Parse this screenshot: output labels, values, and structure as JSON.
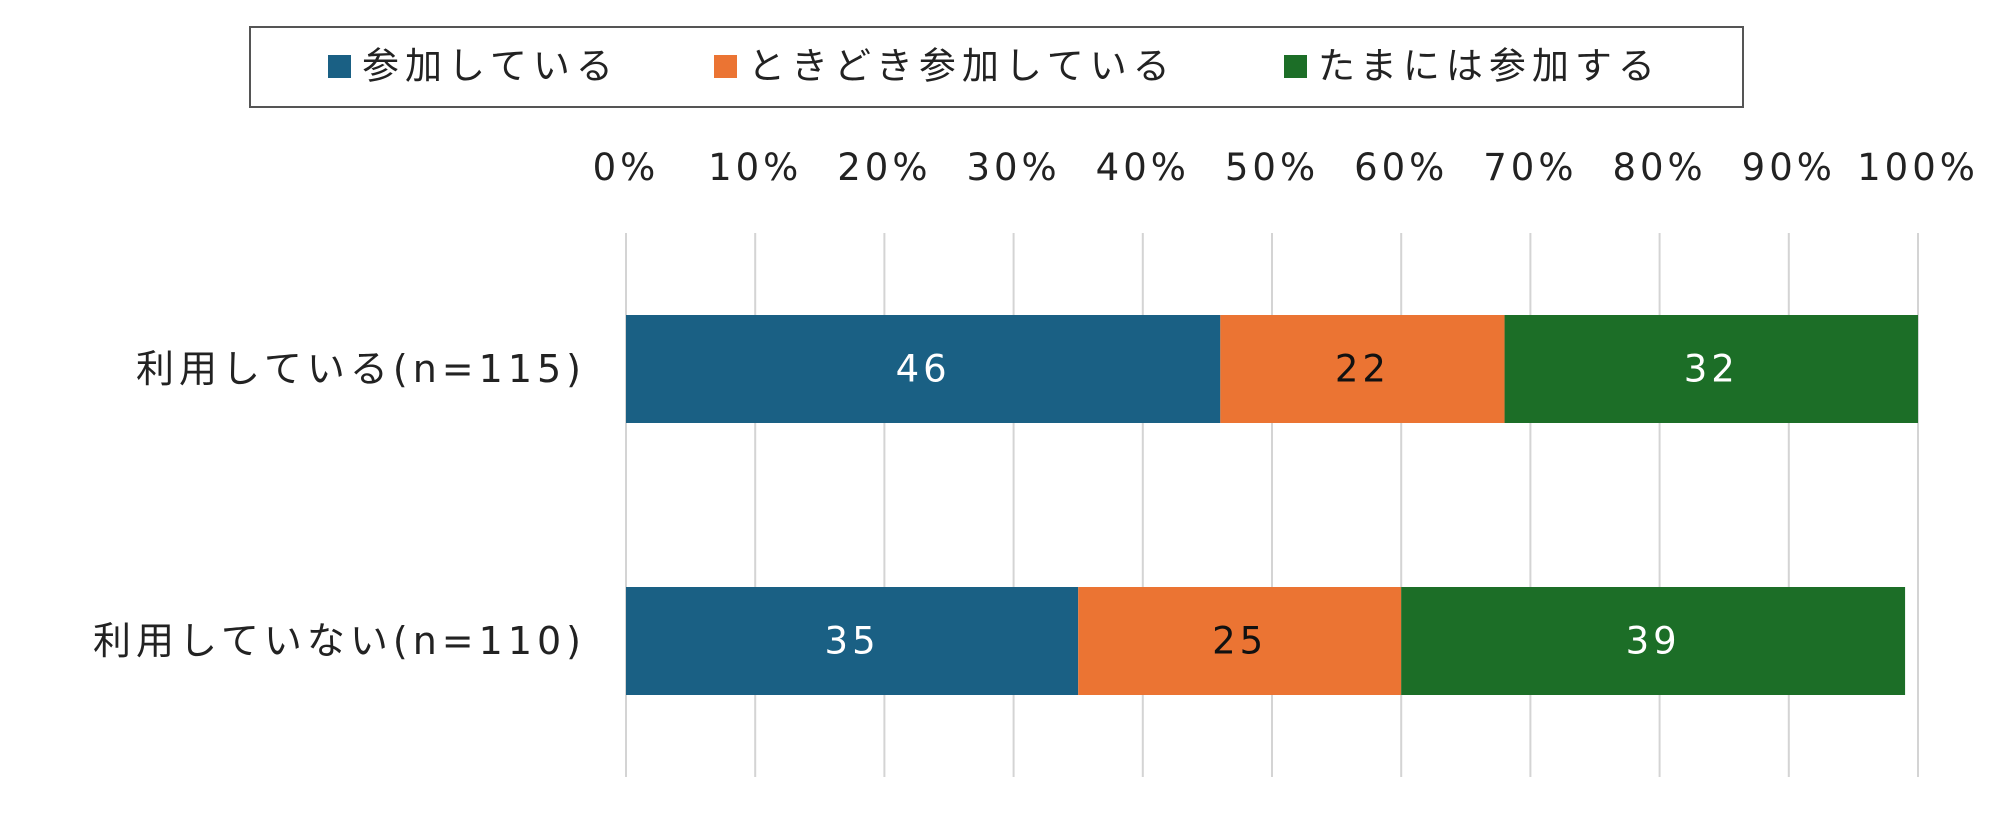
{
  "chart_data": {
    "type": "bar",
    "orientation": "horizontal",
    "stacked": "percent",
    "categories": [
      "利用している(n=115)",
      "利用していない(n=110)"
    ],
    "series": [
      {
        "name": "参加している",
        "color": "#1a6084",
        "label_color": "#ffffff",
        "values": [
          46,
          35
        ]
      },
      {
        "name": "ときどき参加している",
        "color": "#eb7433",
        "label_color": "#111111",
        "values": [
          22,
          25
        ]
      },
      {
        "name": "たまには参加する",
        "color": "#1c6e27",
        "label_color": "#ffffff",
        "values": [
          32,
          39
        ]
      }
    ],
    "x_ticks": [
      "0%",
      "10%",
      "20%",
      "30%",
      "40%",
      "50%",
      "60%",
      "70%",
      "80%",
      "90%",
      "100%"
    ],
    "xlim": [
      0,
      100
    ],
    "axis_position": "top",
    "grid": true,
    "legend_position": "top",
    "title": "",
    "xlabel": "",
    "ylabel": ""
  }
}
